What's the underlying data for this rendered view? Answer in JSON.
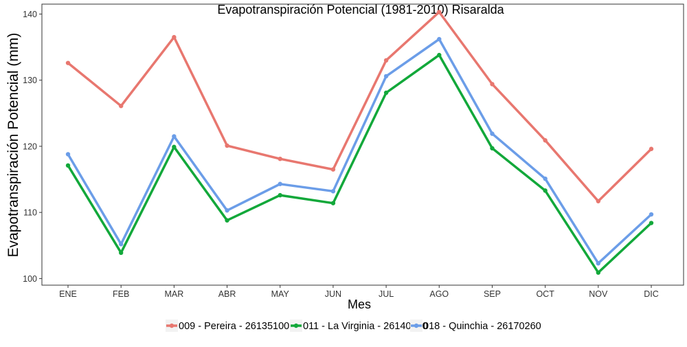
{
  "chart_data": {
    "type": "line",
    "title": "Evapotranspiración Potencial (1981-2010)  Risaralda",
    "xlabel": "Mes",
    "ylabel": "Evapotranspiración Potencial  (mm)",
    "categories": [
      "ENE",
      "FEB",
      "MAR",
      "ABR",
      "MAY",
      "JUN",
      "JUL",
      "AGO",
      "SEP",
      "OCT",
      "NOV",
      "DIC"
    ],
    "ylim": [
      99,
      141.5
    ],
    "yticks": [
      100,
      110,
      120,
      130,
      140
    ],
    "grid": false,
    "legend_position": "bottom",
    "series": [
      {
        "name": "009 - Pereira - 26135100",
        "color": "#e8776f",
        "values": [
          132.6,
          126.1,
          136.5,
          120.1,
          118.1,
          116.5,
          133.0,
          140.3,
          129.4,
          120.9,
          111.7,
          119.6
        ]
      },
      {
        "name": "011 - La Virginia - 26140180",
        "color": "#12a83a",
        "values": [
          117.1,
          103.9,
          119.9,
          108.8,
          112.6,
          111.4,
          128.1,
          133.8,
          119.7,
          113.3,
          100.9,
          108.4
        ]
      },
      {
        "name": "018 - Quinchia - 26170260",
        "color": "#6b9de8",
        "values": [
          118.8,
          105.2,
          121.5,
          110.3,
          114.3,
          113.2,
          130.6,
          136.2,
          121.9,
          115.1,
          102.3,
          109.7
        ]
      }
    ]
  }
}
